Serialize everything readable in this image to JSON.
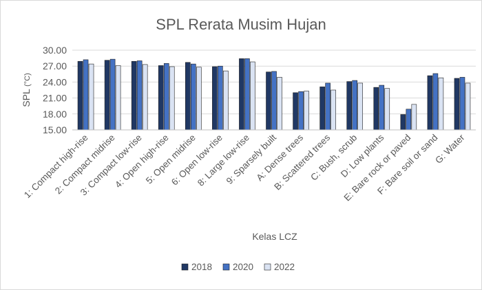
{
  "chart_data": {
    "type": "bar",
    "title": "SPL Rerata Musim Hujan",
    "xlabel": "Kelas LCZ",
    "ylabel_main": "SPL",
    "ylabel_unit": "(°C)",
    "ylim": [
      15,
      30
    ],
    "yticks": [
      "15.00",
      "18.00",
      "21.00",
      "24.00",
      "27.00",
      "30.00"
    ],
    "ytick_values": [
      15,
      18,
      21,
      24,
      27,
      30
    ],
    "legend_position": "bottom",
    "categories": [
      "1: Compact high-rise",
      "2: Compact midrise",
      "3: Compact low-rise",
      "4: Open high-rise",
      "5: Open midrise",
      "6: Open low-rise",
      "8: Large low-rise",
      "9: Sparsely built",
      "A: Dense trees",
      "B: Scattered trees",
      "C: Bush, scrub",
      "D: Low plants",
      "E: Bare rock or paved",
      "F: Bare soil or sand",
      "G: Water"
    ],
    "series": [
      {
        "name": "2018",
        "color": "#203864",
        "values": [
          27.9,
          28.1,
          27.9,
          27.1,
          27.7,
          26.9,
          28.4,
          25.9,
          22.0,
          23.1,
          24.1,
          23.0,
          17.9,
          25.2,
          24.7
        ]
      },
      {
        "name": "2020",
        "color": "#4472C4",
        "values": [
          28.2,
          28.3,
          28.0,
          27.5,
          27.4,
          27.0,
          28.4,
          26.0,
          22.2,
          23.8,
          24.3,
          23.4,
          18.9,
          25.6,
          24.9
        ]
      },
      {
        "name": "2022",
        "color": "#DAE3F3",
        "values": [
          27.4,
          27.1,
          27.3,
          26.9,
          26.8,
          26.1,
          27.8,
          24.9,
          22.3,
          22.5,
          23.8,
          22.8,
          19.8,
          24.8,
          23.8
        ]
      }
    ]
  }
}
